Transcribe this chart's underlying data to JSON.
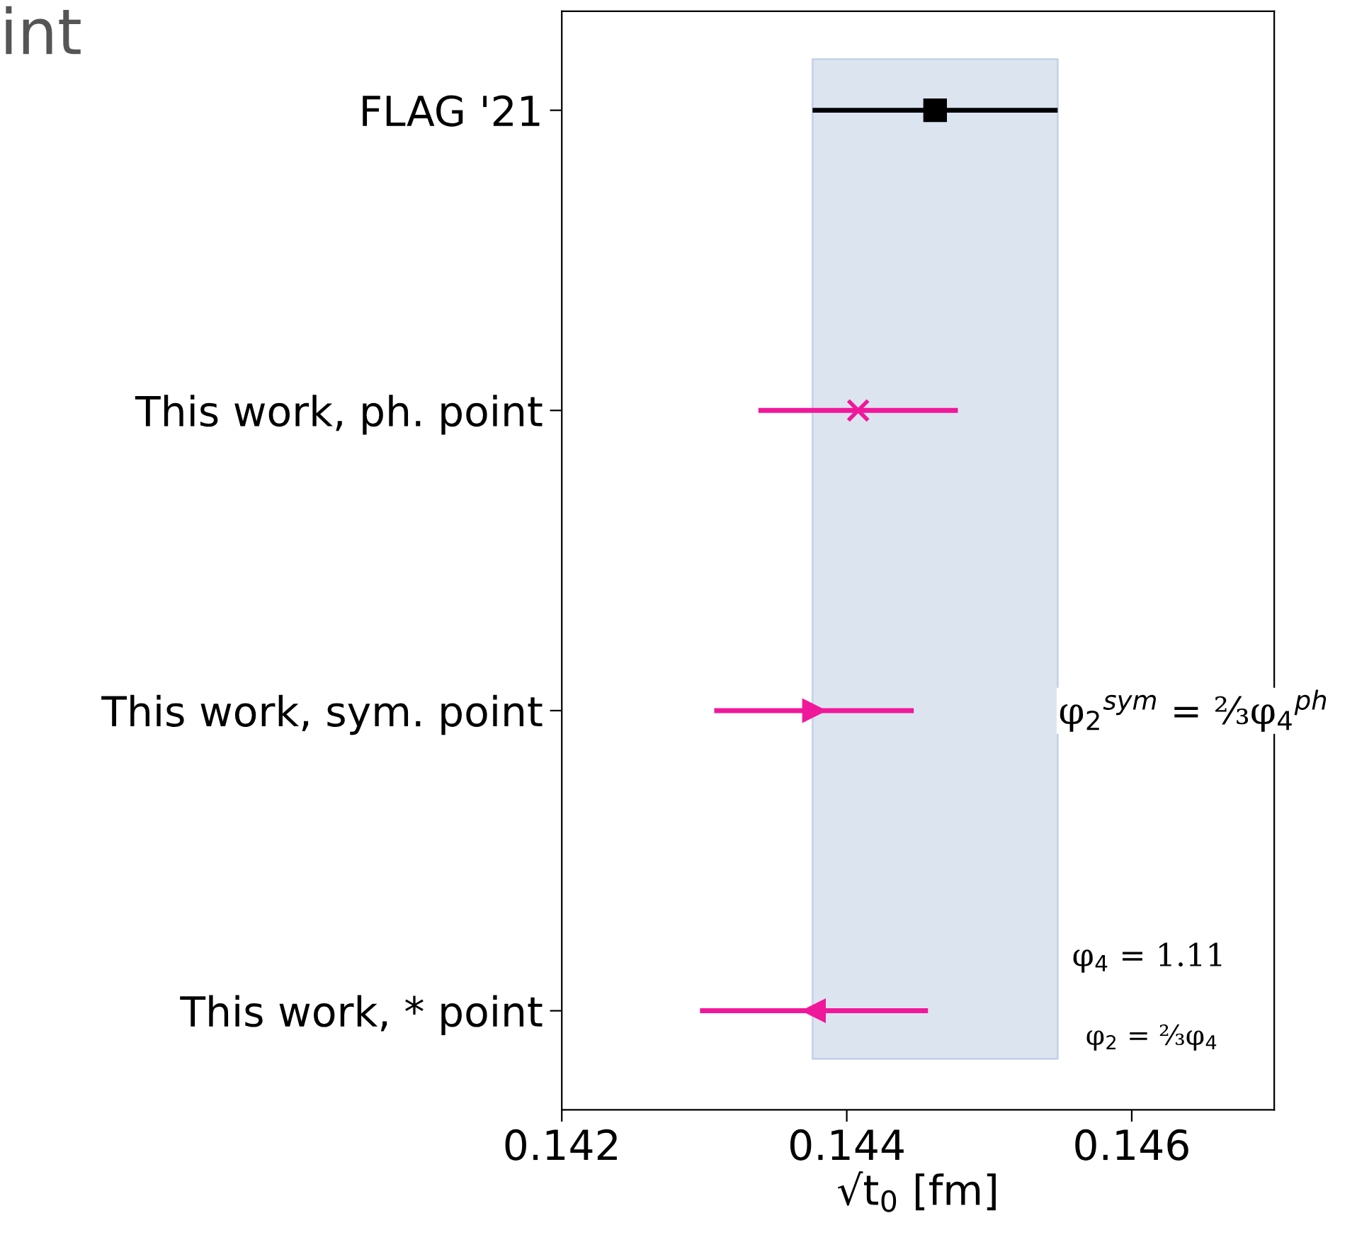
{
  "chart_data": {
    "type": "scatter",
    "orientation": "horizontal",
    "categories": [
      "FLAG '21",
      "This work, ph. point",
      "This work, sym. point",
      "This work, * point"
    ],
    "xlabel": "√t$_{0}$ [fm]",
    "xlim": [
      0.142,
      0.147
    ],
    "xticks": [
      0.142,
      0.144,
      0.146
    ],
    "grid": false,
    "legend": false,
    "series": [
      {
        "color": "#000000",
        "marker": "square",
        "values": [
          0.14462,
          null,
          null,
          null
        ],
        "errors": [
          0.00086,
          null,
          null,
          null
        ]
      },
      {
        "color": "#f0189a",
        "marker": "cross",
        "values": [
          null,
          0.14408,
          null,
          null
        ],
        "errors": [
          null,
          0.0007,
          null,
          null
        ]
      },
      {
        "color": "#f0189a",
        "marker": "triangle-right",
        "values": [
          null,
          null,
          0.14377,
          null
        ],
        "errors": [
          null,
          null,
          0.0007,
          null
        ]
      },
      {
        "color": "#f0189a",
        "marker": "triangle-left",
        "values": [
          null,
          null,
          null,
          0.14377
        ],
        "errors": [
          null,
          null,
          null,
          0.0008
        ]
      }
    ],
    "bands": [
      {
        "axis": "x",
        "from": 0.14376,
        "to": 0.14548,
        "color": "#dce4f0"
      }
    ],
    "annotations": [
      "int",
      "φ$_{2}$$^{sym}$ = ⅔φ$_{4}$$^{ph}$",
      "φ$_{4}$ = 1.11",
      "φ$_{2}$ = ⅔φ$_{4}$"
    ]
  }
}
